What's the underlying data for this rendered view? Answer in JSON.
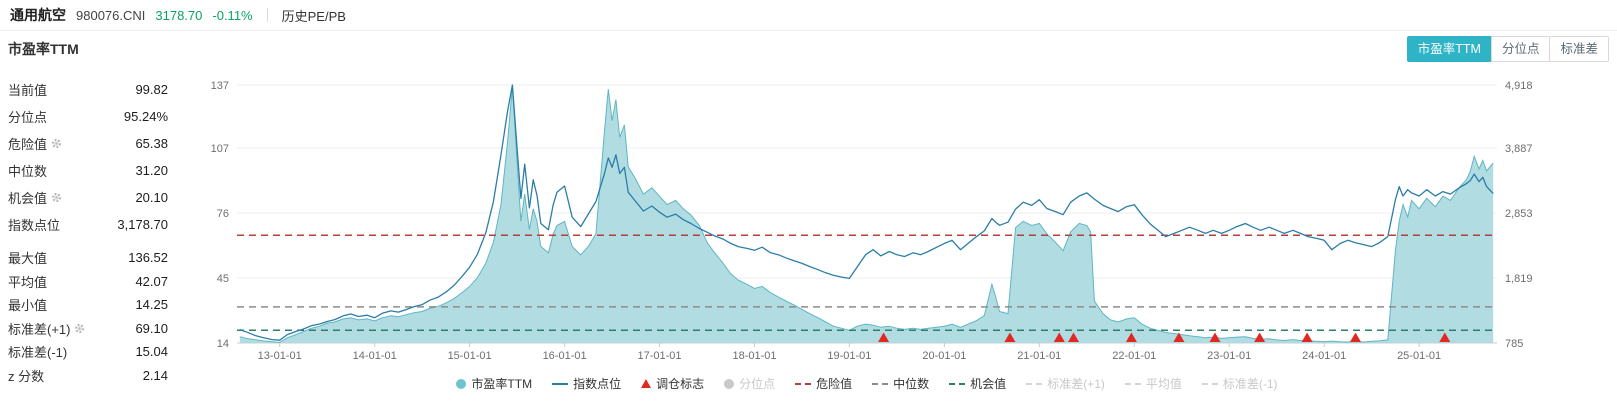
{
  "header": {
    "title": "通用航空",
    "code": "980076.CNI",
    "price": "3178.70",
    "change": "-0.11%",
    "nav": "历史PE/PB"
  },
  "section": {
    "title": "市盈率TTM"
  },
  "tabs": {
    "items": [
      {
        "label": "市盈率TTM",
        "active": true
      },
      {
        "label": "分位点",
        "active": false
      },
      {
        "label": "标准差",
        "active": false
      }
    ]
  },
  "stats": {
    "rows": [
      {
        "label": "当前值",
        "value": "99.82"
      },
      {
        "label": "分位点",
        "value": "95.24%"
      },
      {
        "label": "危险值",
        "value": "65.38",
        "gear": true
      },
      {
        "label": "中位数",
        "value": "31.20"
      },
      {
        "label": "机会值",
        "value": "20.10",
        "gear": true
      },
      {
        "label": "指数点位",
        "value": "3,178.70"
      },
      {
        "label": "最大值",
        "value": "136.52",
        "group2": true,
        "gap": true
      },
      {
        "label": "平均值",
        "value": "42.07",
        "group2": true
      },
      {
        "label": "最小值",
        "value": "14.25",
        "group2": true
      },
      {
        "label": "标准差(+1)",
        "value": "69.10",
        "gear": true,
        "group2": true
      },
      {
        "label": "标准差(-1)",
        "value": "15.04",
        "group2": true
      },
      {
        "label": "z 分数",
        "value": "2.14",
        "group2": true
      }
    ]
  },
  "colors": {
    "accent_teal": "#2fb3c6",
    "area_fill": "#a8d8df",
    "area_stroke": "#5eb6c4",
    "index_line": "#2b7da8",
    "danger_red": "#b0413c",
    "median_gray": "#8c8c8c",
    "opportunity_green": "#2f7d6d",
    "marker_red": "#e02920",
    "price_green": "#0ba360"
  },
  "legend": {
    "items": [
      {
        "label": "市盈率TTM",
        "marker": "circle",
        "color": "#6fc3cf",
        "enabled": true
      },
      {
        "label": "指数点位",
        "marker": "line",
        "color": "#2b7da8",
        "enabled": true
      },
      {
        "label": "调仓标志",
        "marker": "triangle",
        "color": "#e02920",
        "enabled": true
      },
      {
        "label": "分位点",
        "marker": "circle",
        "color": "#c9c9c9",
        "enabled": false
      },
      {
        "label": "危险值",
        "marker": "dash",
        "color": "#b0413c",
        "enabled": true
      },
      {
        "label": "中位数",
        "marker": "dash",
        "color": "#8c8c8c",
        "enabled": true
      },
      {
        "label": "机会值",
        "marker": "dash",
        "color": "#2f7d6d",
        "enabled": true
      },
      {
        "label": "标准差(+1)",
        "marker": "dash",
        "color": "#d4d4d4",
        "enabled": false
      },
      {
        "label": "平均值",
        "marker": "dash",
        "color": "#d4d4d4",
        "enabled": false
      },
      {
        "label": "标准差(-1)",
        "marker": "dash",
        "color": "#d4d4d4",
        "enabled": false
      }
    ]
  },
  "chart_data": {
    "type": "area+line",
    "title": "市盈率TTM",
    "x_unit": "decimal_year",
    "x_range": [
      2012.55,
      2025.82
    ],
    "pe_axis": {
      "label": "市盈率TTM",
      "min": 14,
      "max": 137,
      "ticks": [
        14,
        45,
        76,
        107,
        137
      ]
    },
    "index_axis": {
      "label": "指数点位",
      "min": 785,
      "max": 4918,
      "ticks": [
        785,
        1819,
        2853,
        3887,
        4918
      ],
      "tick_labels": [
        "785",
        "1,819",
        "2,853",
        "3,887",
        "4,918"
      ]
    },
    "x_ticks": [
      {
        "label": "13-01-01",
        "year": 2013
      },
      {
        "label": "14-01-01",
        "year": 2014
      },
      {
        "label": "15-01-01",
        "year": 2015
      },
      {
        "label": "16-01-01",
        "year": 2016
      },
      {
        "label": "17-01-01",
        "year": 2017
      },
      {
        "label": "18-01-01",
        "year": 2018
      },
      {
        "label": "19-01-01",
        "year": 2019
      },
      {
        "label": "20-01-01",
        "year": 2020
      },
      {
        "label": "21-01-01",
        "year": 2021
      },
      {
        "label": "22-01-01",
        "year": 2022
      },
      {
        "label": "23-01-01",
        "year": 2023
      },
      {
        "label": "24-01-01",
        "year": 2024
      },
      {
        "label": "25-01-01",
        "year": 2025
      }
    ],
    "series_names": [
      "市盈率TTM",
      "指数点位"
    ],
    "points": [
      [
        2012.58,
        17,
        1000
      ],
      [
        2012.67,
        16,
        950
      ],
      [
        2012.75,
        15.5,
        900
      ],
      [
        2012.83,
        15,
        870
      ],
      [
        2012.92,
        14.6,
        840
      ],
      [
        2013,
        14.3,
        830
      ],
      [
        2013.08,
        16.5,
        920
      ],
      [
        2013.17,
        18,
        970
      ],
      [
        2013.25,
        19.5,
        1010
      ],
      [
        2013.33,
        21,
        1060
      ],
      [
        2013.42,
        22,
        1090
      ],
      [
        2013.5,
        23.5,
        1130
      ],
      [
        2013.58,
        24,
        1160
      ],
      [
        2013.67,
        25.5,
        1220
      ],
      [
        2013.75,
        26,
        1250
      ],
      [
        2013.83,
        25,
        1210
      ],
      [
        2013.92,
        25.5,
        1230
      ],
      [
        2014,
        24.5,
        1190
      ],
      [
        2014.08,
        26,
        1260
      ],
      [
        2014.17,
        27,
        1300
      ],
      [
        2014.25,
        26.5,
        1280
      ],
      [
        2014.33,
        27.5,
        1320
      ],
      [
        2014.42,
        28.5,
        1370
      ],
      [
        2014.5,
        29,
        1400
      ],
      [
        2014.58,
        30.5,
        1470
      ],
      [
        2014.67,
        31.5,
        1520
      ],
      [
        2014.75,
        33,
        1600
      ],
      [
        2014.83,
        35,
        1700
      ],
      [
        2014.92,
        38,
        1850
      ],
      [
        2015,
        41,
        2000
      ],
      [
        2015.08,
        45,
        2200
      ],
      [
        2015.17,
        52,
        2550
      ],
      [
        2015.25,
        62,
        3050
      ],
      [
        2015.33,
        80,
        3800
      ],
      [
        2015.4,
        110,
        4500
      ],
      [
        2015.45,
        136.5,
        4918
      ],
      [
        2015.5,
        100,
        3900
      ],
      [
        2015.54,
        72,
        3100
      ],
      [
        2015.58,
        85,
        3650
      ],
      [
        2015.63,
        68,
        2950
      ],
      [
        2015.67,
        78,
        3400
      ],
      [
        2015.71,
        72,
        3150
      ],
      [
        2015.75,
        60,
        2700
      ],
      [
        2015.83,
        57,
        2600
      ],
      [
        2015.88,
        66,
        3000
      ],
      [
        2015.92,
        70,
        3200
      ],
      [
        2016,
        72,
        3300
      ],
      [
        2016.08,
        60,
        2800
      ],
      [
        2016.17,
        56,
        2650
      ],
      [
        2016.25,
        60,
        2850
      ],
      [
        2016.33,
        66,
        3050
      ],
      [
        2016.42,
        115,
        3500
      ],
      [
        2016.46,
        135,
        3750
      ],
      [
        2016.5,
        120,
        3600
      ],
      [
        2016.54,
        130,
        3800
      ],
      [
        2016.58,
        112,
        3500
      ],
      [
        2016.63,
        118,
        3600
      ],
      [
        2016.67,
        98,
        3200
      ],
      [
        2016.75,
        92,
        3050
      ],
      [
        2016.83,
        85,
        2900
      ],
      [
        2016.92,
        88,
        2980
      ],
      [
        2017,
        84,
        2880
      ],
      [
        2017.08,
        80,
        2800
      ],
      [
        2017.17,
        82,
        2850
      ],
      [
        2017.25,
        78,
        2760
      ],
      [
        2017.33,
        75,
        2700
      ],
      [
        2017.42,
        70,
        2620
      ],
      [
        2017.5,
        62,
        2560
      ],
      [
        2017.58,
        57,
        2500
      ],
      [
        2017.67,
        52,
        2450
      ],
      [
        2017.75,
        47,
        2380
      ],
      [
        2017.83,
        44,
        2330
      ],
      [
        2017.92,
        42,
        2300
      ],
      [
        2018,
        40,
        2270
      ],
      [
        2018.08,
        41,
        2320
      ],
      [
        2018.17,
        38,
        2230
      ],
      [
        2018.25,
        36,
        2200
      ],
      [
        2018.33,
        34,
        2150
      ],
      [
        2018.42,
        32,
        2100
      ],
      [
        2018.5,
        30,
        2060
      ],
      [
        2018.58,
        28,
        2010
      ],
      [
        2018.67,
        26,
        1960
      ],
      [
        2018.75,
        24,
        1910
      ],
      [
        2018.83,
        22,
        1870
      ],
      [
        2018.92,
        21,
        1840
      ],
      [
        2019,
        20,
        1820
      ],
      [
        2019.08,
        22,
        2000
      ],
      [
        2019.17,
        23,
        2200
      ],
      [
        2019.25,
        22.5,
        2280
      ],
      [
        2019.33,
        21.5,
        2180
      ],
      [
        2019.42,
        22,
        2250
      ],
      [
        2019.5,
        21,
        2200
      ],
      [
        2019.58,
        20.5,
        2170
      ],
      [
        2019.67,
        21,
        2230
      ],
      [
        2019.75,
        20.5,
        2200
      ],
      [
        2019.83,
        21,
        2250
      ],
      [
        2019.92,
        21.5,
        2320
      ],
      [
        2020,
        22,
        2380
      ],
      [
        2020.08,
        23,
        2430
      ],
      [
        2020.17,
        21.5,
        2280
      ],
      [
        2020.25,
        23,
        2380
      ],
      [
        2020.33,
        24.5,
        2480
      ],
      [
        2020.42,
        27,
        2580
      ],
      [
        2020.5,
        42,
        2780
      ],
      [
        2020.54,
        36,
        2720
      ],
      [
        2020.58,
        29,
        2670
      ],
      [
        2020.67,
        28,
        2720
      ],
      [
        2020.75,
        69,
        2930
      ],
      [
        2020.83,
        72,
        3040
      ],
      [
        2020.92,
        70,
        2990
      ],
      [
        2021,
        71,
        3080
      ],
      [
        2021.08,
        66,
        2940
      ],
      [
        2021.17,
        62,
        2890
      ],
      [
        2021.25,
        58,
        2840
      ],
      [
        2021.33,
        67,
        3040
      ],
      [
        2021.42,
        71,
        3140
      ],
      [
        2021.5,
        70,
        3190
      ],
      [
        2021.54,
        67,
        3140
      ],
      [
        2021.58,
        34,
        3090
      ],
      [
        2021.67,
        28,
        2990
      ],
      [
        2021.75,
        25,
        2940
      ],
      [
        2021.83,
        24,
        2890
      ],
      [
        2021.92,
        25.5,
        2970
      ],
      [
        2022,
        26,
        3000
      ],
      [
        2022.08,
        23,
        2840
      ],
      [
        2022.17,
        21,
        2690
      ],
      [
        2022.25,
        20,
        2590
      ],
      [
        2022.33,
        19,
        2490
      ],
      [
        2022.42,
        18.5,
        2540
      ],
      [
        2022.5,
        18,
        2590
      ],
      [
        2022.58,
        17.5,
        2640
      ],
      [
        2022.67,
        17,
        2590
      ],
      [
        2022.75,
        16.5,
        2540
      ],
      [
        2022.83,
        16.8,
        2590
      ],
      [
        2022.92,
        16.2,
        2540
      ],
      [
        2023,
        16.5,
        2590
      ],
      [
        2023.08,
        16.8,
        2650
      ],
      [
        2023.17,
        17,
        2700
      ],
      [
        2023.25,
        16.2,
        2640
      ],
      [
        2023.33,
        15.8,
        2590
      ],
      [
        2023.42,
        16,
        2640
      ],
      [
        2023.5,
        15.5,
        2590
      ],
      [
        2023.58,
        15.2,
        2540
      ],
      [
        2023.67,
        15.6,
        2590
      ],
      [
        2023.75,
        15.2,
        2540
      ],
      [
        2023.83,
        15,
        2490
      ],
      [
        2023.92,
        14.8,
        2460
      ],
      [
        2024,
        14.6,
        2430
      ],
      [
        2024.08,
        14.9,
        2280
      ],
      [
        2024.17,
        14.6,
        2380
      ],
      [
        2024.25,
        14.5,
        2430
      ],
      [
        2024.33,
        14.7,
        2390
      ],
      [
        2024.42,
        14.5,
        2360
      ],
      [
        2024.5,
        14.8,
        2330
      ],
      [
        2024.58,
        15,
        2390
      ],
      [
        2024.67,
        15.5,
        2490
      ],
      [
        2024.75,
        58,
        3080
      ],
      [
        2024.79,
        72,
        3290
      ],
      [
        2024.83,
        80,
        3140
      ],
      [
        2024.88,
        74,
        3240
      ],
      [
        2024.92,
        82,
        3190
      ],
      [
        2025,
        78,
        3140
      ],
      [
        2025.08,
        83,
        3240
      ],
      [
        2025.17,
        79,
        3140
      ],
      [
        2025.25,
        84,
        3210
      ],
      [
        2025.33,
        82,
        3170
      ],
      [
        2025.42,
        88,
        3270
      ],
      [
        2025.5,
        92,
        3340
      ],
      [
        2025.54,
        96,
        3390
      ],
      [
        2025.58,
        103,
        3490
      ],
      [
        2025.63,
        97,
        3370
      ],
      [
        2025.67,
        101,
        3440
      ],
      [
        2025.71,
        96,
        3290
      ],
      [
        2025.78,
        99.82,
        3178.7
      ]
    ],
    "ref_lines": [
      {
        "name": "危险值",
        "value": 65.38,
        "color": "#b0413c"
      },
      {
        "name": "中位数",
        "value": 31.2,
        "color": "#8c8c8c"
      },
      {
        "name": "机会值",
        "value": 20.1,
        "color": "#2f7d6d"
      }
    ],
    "markers": {
      "name": "调仓标志",
      "color": "#e02920",
      "years": [
        2019.36,
        2020.69,
        2021.21,
        2021.36,
        2021.97,
        2022.47,
        2022.85,
        2023.32,
        2023.82,
        2024.33,
        2025.27
      ]
    },
    "legend_position": "bottom",
    "grid": true
  }
}
